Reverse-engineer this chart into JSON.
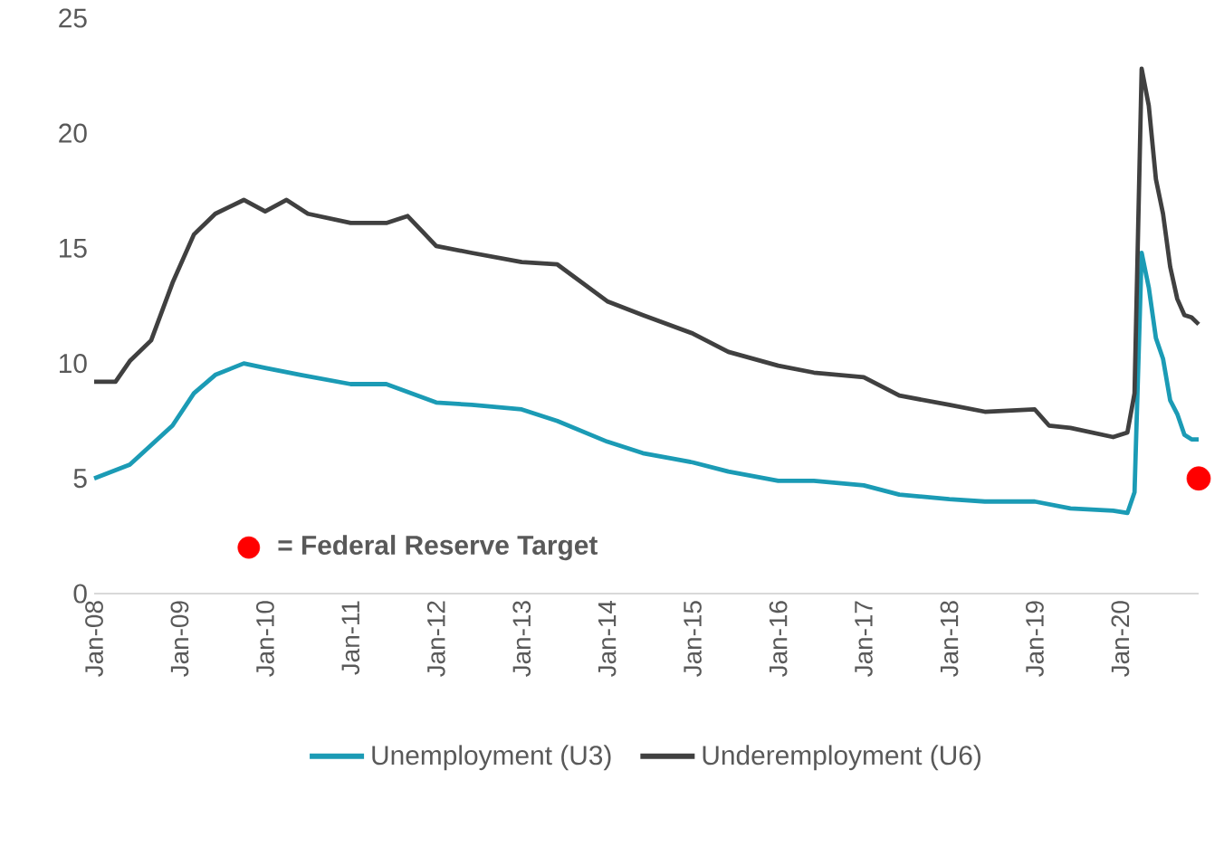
{
  "chart_data": {
    "type": "line",
    "xlim": [
      "2008-01",
      "2020-12"
    ],
    "ylim": [
      0,
      25
    ],
    "yticks": [
      0,
      5,
      10,
      15,
      20,
      25
    ],
    "xticks": [
      {
        "value": "2008-01",
        "label": "Jan-08"
      },
      {
        "value": "2009-01",
        "label": "Jan-09"
      },
      {
        "value": "2010-01",
        "label": "Jan-10"
      },
      {
        "value": "2011-01",
        "label": "Jan-11"
      },
      {
        "value": "2012-01",
        "label": "Jan-12"
      },
      {
        "value": "2013-01",
        "label": "Jan-13"
      },
      {
        "value": "2014-01",
        "label": "Jan-14"
      },
      {
        "value": "2015-01",
        "label": "Jan-15"
      },
      {
        "value": "2016-01",
        "label": "Jan-16"
      },
      {
        "value": "2017-01",
        "label": "Jan-17"
      },
      {
        "value": "2018-01",
        "label": "Jan-18"
      },
      {
        "value": "2019-01",
        "label": "Jan-19"
      },
      {
        "value": "2020-01",
        "label": "Jan-20"
      }
    ],
    "grid": false,
    "legend": "bottom",
    "marker": "none",
    "line_style": "solid",
    "series": [
      {
        "name": "Unemployment (U3)",
        "color": "#1b9bb5",
        "x": [
          "2008-01",
          "2008-06",
          "2008-12",
          "2009-03",
          "2009-06",
          "2009-10",
          "2010-01",
          "2010-06",
          "2011-01",
          "2011-06",
          "2012-01",
          "2012-06",
          "2013-01",
          "2013-06",
          "2014-01",
          "2014-06",
          "2015-01",
          "2015-06",
          "2016-01",
          "2016-06",
          "2017-01",
          "2017-06",
          "2018-01",
          "2018-06",
          "2019-01",
          "2019-06",
          "2019-12",
          "2020-02",
          "2020-03",
          "2020-04",
          "2020-05",
          "2020-06",
          "2020-07",
          "2020-08",
          "2020-09",
          "2020-10",
          "2020-11",
          "2020-12"
        ],
        "values": [
          5.0,
          5.6,
          7.3,
          8.7,
          9.5,
          10.0,
          9.8,
          9.5,
          9.1,
          9.1,
          8.3,
          8.2,
          8.0,
          7.5,
          6.6,
          6.1,
          5.7,
          5.3,
          4.9,
          4.9,
          4.7,
          4.3,
          4.1,
          4.0,
          4.0,
          3.7,
          3.6,
          3.5,
          4.4,
          14.8,
          13.3,
          11.1,
          10.2,
          8.4,
          7.8,
          6.9,
          6.7,
          6.7
        ]
      },
      {
        "name": "Underemployment (U6)",
        "color": "#404040",
        "x": [
          "2008-01",
          "2008-04",
          "2008-06",
          "2008-09",
          "2008-12",
          "2009-03",
          "2009-06",
          "2009-10",
          "2010-01",
          "2010-04",
          "2010-07",
          "2011-01",
          "2011-06",
          "2011-09",
          "2012-01",
          "2012-06",
          "2013-01",
          "2013-06",
          "2014-01",
          "2014-06",
          "2015-01",
          "2015-06",
          "2016-01",
          "2016-06",
          "2017-01",
          "2017-06",
          "2018-01",
          "2018-06",
          "2019-01",
          "2019-03",
          "2019-06",
          "2019-12",
          "2020-02",
          "2020-03",
          "2020-04",
          "2020-05",
          "2020-06",
          "2020-07",
          "2020-08",
          "2020-09",
          "2020-10",
          "2020-11",
          "2020-12"
        ],
        "values": [
          9.2,
          9.2,
          10.1,
          11.0,
          13.5,
          15.6,
          16.5,
          17.1,
          16.6,
          17.1,
          16.5,
          16.1,
          16.1,
          16.4,
          15.1,
          14.8,
          14.4,
          14.3,
          12.7,
          12.1,
          11.3,
          10.5,
          9.9,
          9.6,
          9.4,
          8.6,
          8.2,
          7.9,
          8.0,
          7.3,
          7.2,
          6.8,
          7.0,
          8.7,
          22.8,
          21.2,
          18.0,
          16.5,
          14.2,
          12.8,
          12.1,
          12.0,
          11.7
        ]
      },
      {
        "name": "= Federal Reserve Target",
        "type": "scatter",
        "marker": "circle",
        "color": "#ff0000",
        "x": [
          "2020-12"
        ],
        "values": [
          5
        ]
      }
    ]
  }
}
